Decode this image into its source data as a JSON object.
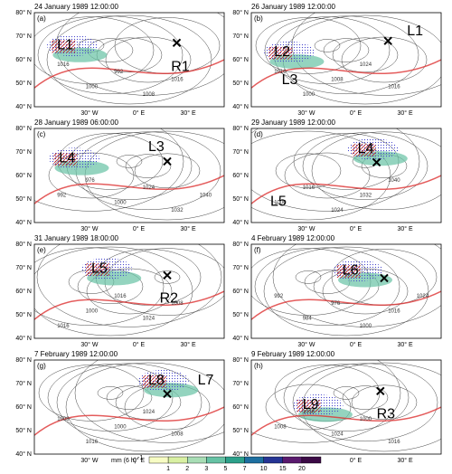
{
  "panels": [
    {
      "letter": "(a)",
      "date": "24 January 1989 12:00:00",
      "features": [
        "L1",
        "R1"
      ],
      "contour_labels": [
        "1016",
        "1000",
        "992",
        "1008",
        "1016"
      ]
    },
    {
      "letter": "(b)",
      "date": "26 January 1989 12:00:00",
      "features": [
        "L2",
        "L3",
        "L1"
      ],
      "contour_labels": [
        "1016",
        "1000",
        "1008",
        "1024",
        "1016"
      ]
    },
    {
      "letter": "(c)",
      "date": "28 January 1989 06:00:00",
      "features": [
        "L4",
        "L3"
      ],
      "contour_labels": [
        "992",
        "976",
        "1000",
        "1024",
        "1032",
        "1040"
      ]
    },
    {
      "letter": "(d)",
      "date": "29 January 1989 12:00:00",
      "features": [
        "L4",
        "L5"
      ],
      "contour_labels": [
        "1000",
        "1016",
        "1024",
        "1032",
        "1040"
      ]
    },
    {
      "letter": "(e)",
      "date": "31 January 1989 18:00:00",
      "features": [
        "L5",
        "R2"
      ],
      "contour_labels": [
        "1016",
        "1000",
        "1016",
        "1024",
        "1008"
      ]
    },
    {
      "letter": "(f)",
      "date": "4 February 1989 12:00:00",
      "features": [
        "L6"
      ],
      "contour_labels": [
        "992",
        "984",
        "976",
        "1000",
        "1016",
        "1024"
      ]
    },
    {
      "letter": "(g)",
      "date": "7 February 1989 12:00:00",
      "features": [
        "L8",
        "L7"
      ],
      "contour_labels": [
        "1008",
        "1016",
        "1000",
        "1024",
        "1008"
      ]
    },
    {
      "letter": "(h)",
      "date": "9 February 1989 12:00:00",
      "features": [
        "L9",
        "R3"
      ],
      "contour_labels": [
        "1008",
        "1016",
        "1024",
        "1000",
        "1016"
      ]
    }
  ],
  "lat_ticks": [
    "80° N",
    "70° N",
    "60° N",
    "50° N",
    "40° N"
  ],
  "lon_ticks": [
    "30° W",
    "0° E",
    "30° E"
  ],
  "colorbar": {
    "label": "mm (6 h)",
    "exponent": "-1",
    "ticks": [
      1,
      2,
      3,
      5,
      7,
      10,
      15,
      20
    ],
    "colors": [
      "#f7fcc4",
      "#d9f0a3",
      "#a8ddb5",
      "#66c2a4",
      "#2ca08a",
      "#1d6fa0",
      "#253494",
      "#5a1a6e",
      "#3b0a45"
    ]
  }
}
